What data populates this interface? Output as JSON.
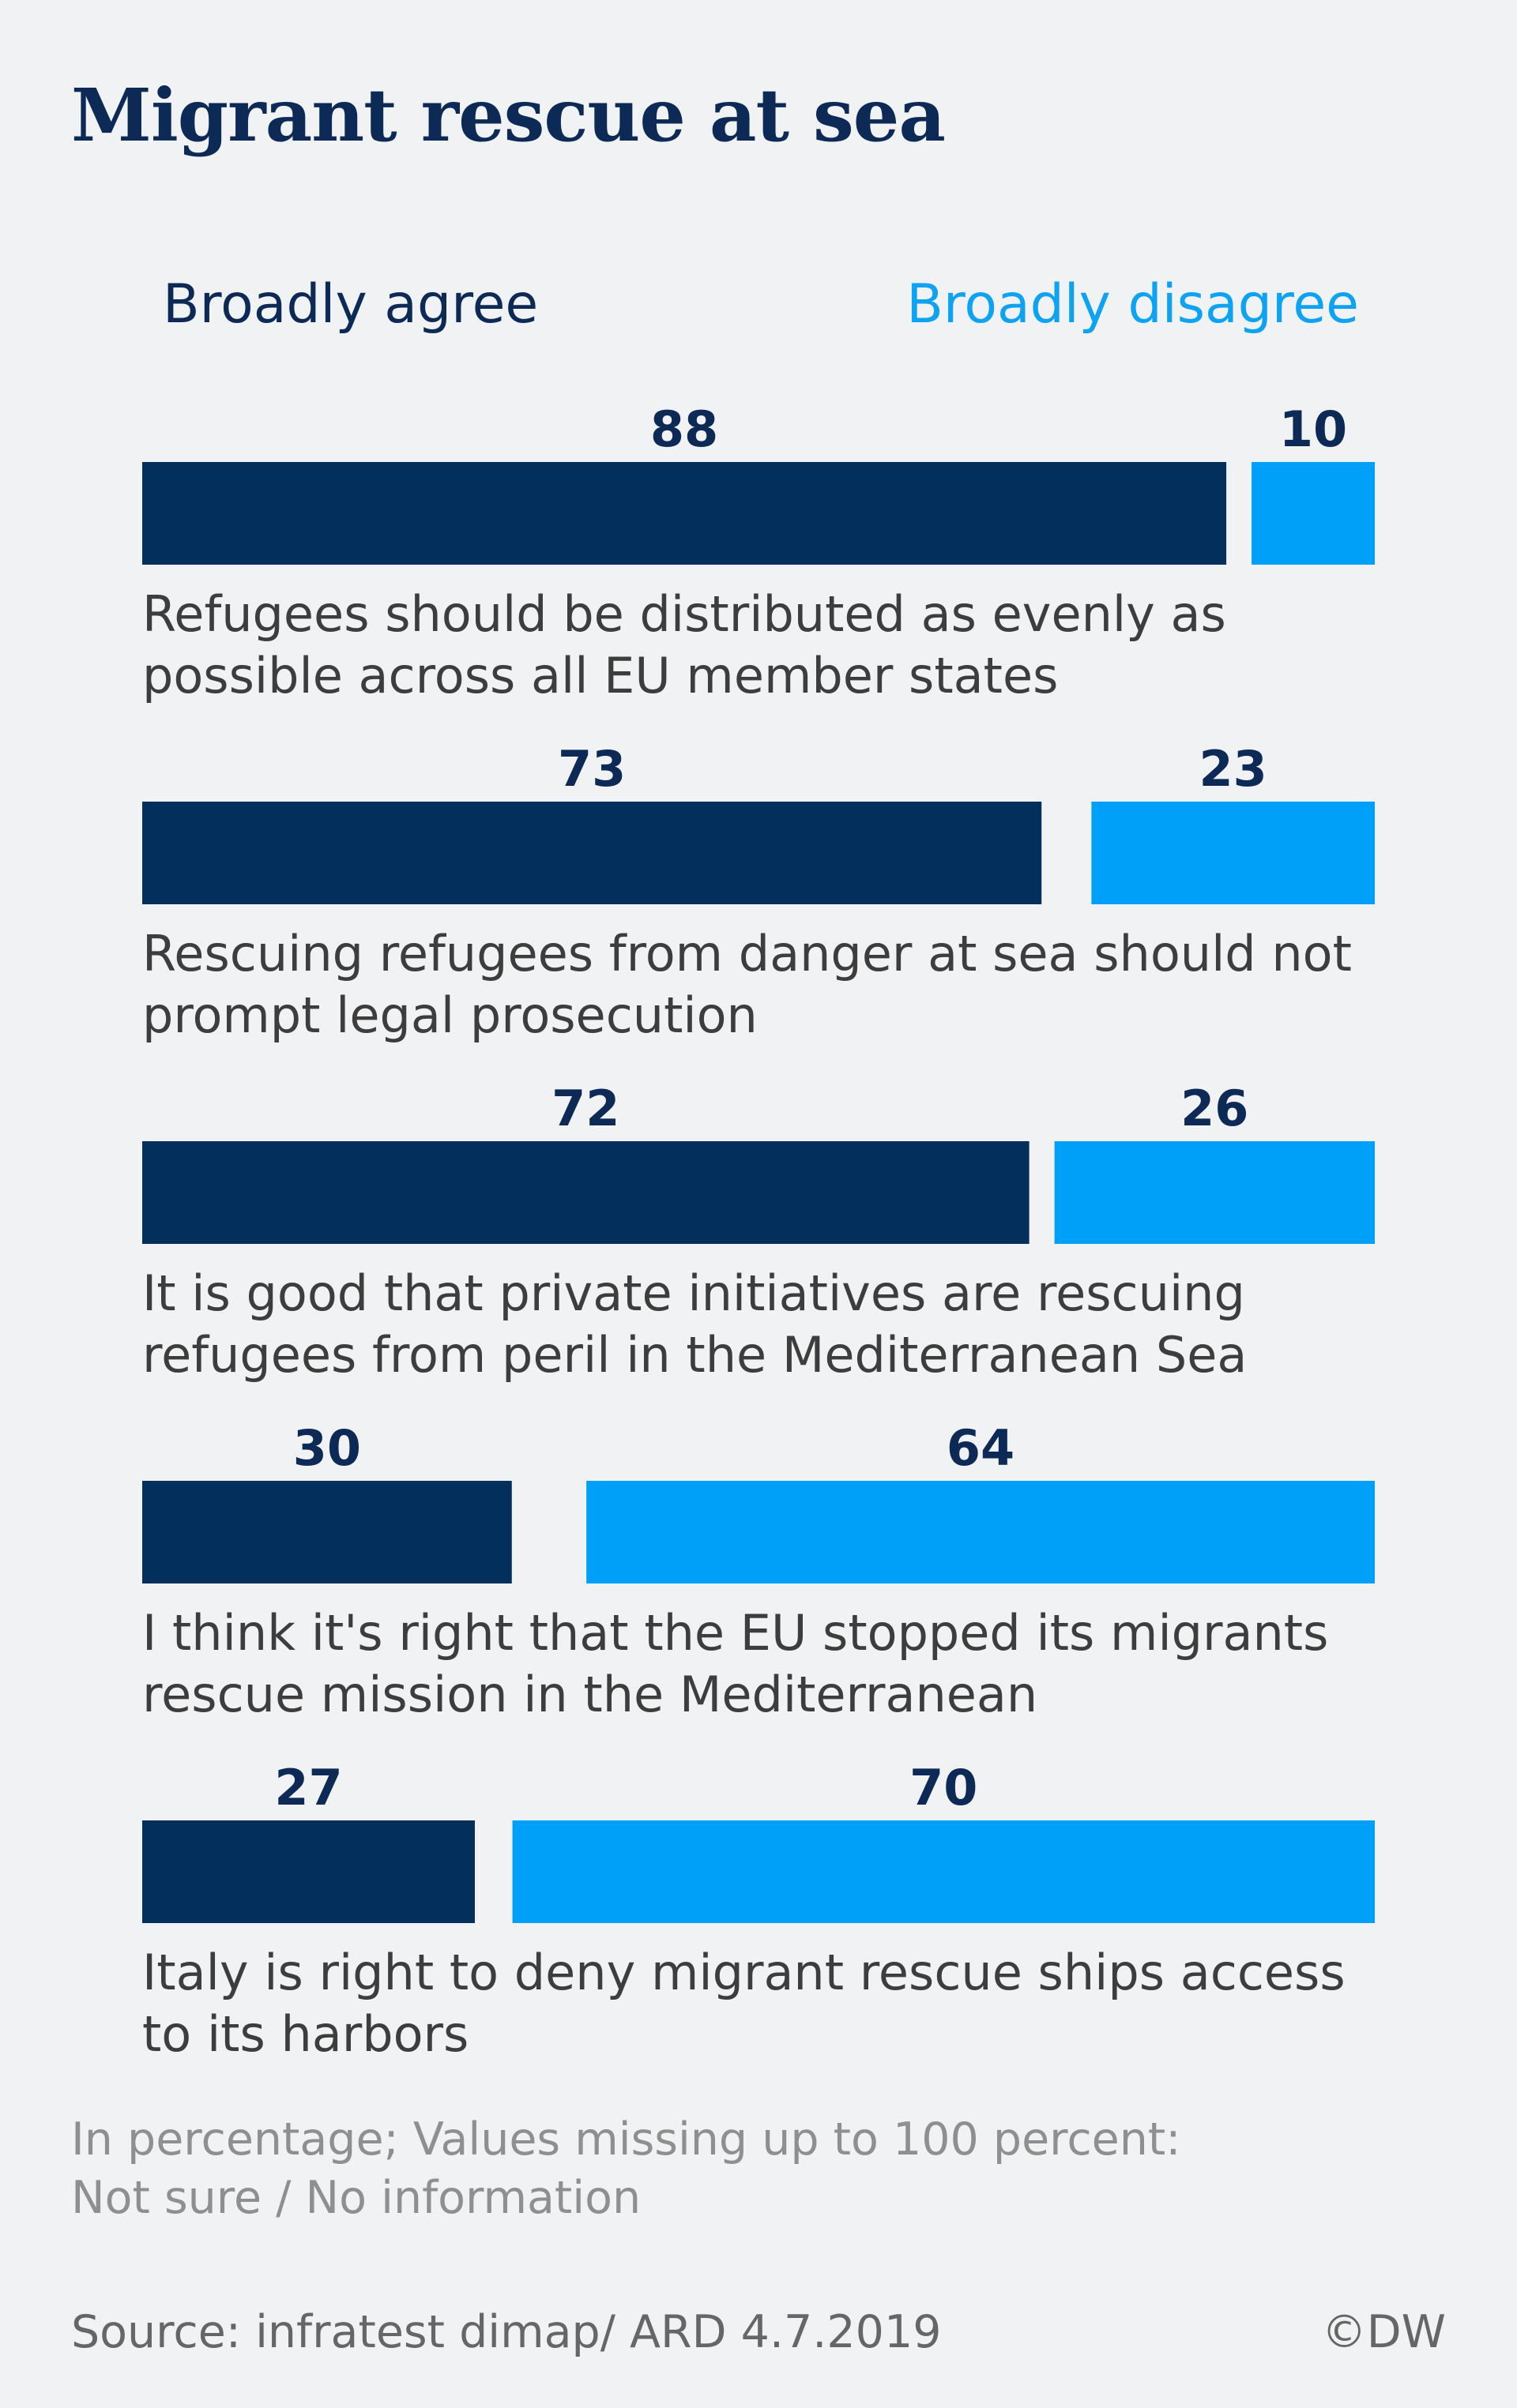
{
  "title": "Migrant rescue at sea",
  "legend": {
    "agree": "Broadly agree",
    "disagree": "Broadly disagree"
  },
  "colors": {
    "agree": "#022f5c",
    "disagree": "#00a0f8",
    "value_text": "#0c2a55",
    "category_text": "#3d3d3d"
  },
  "chart_data": {
    "type": "bar",
    "orientation": "horizontal-diverging",
    "series": [
      {
        "name": "Broadly agree",
        "values": [
          88,
          73,
          72,
          30,
          27
        ]
      },
      {
        "name": "Broadly disagree",
        "values": [
          10,
          23,
          26,
          64,
          70
        ]
      }
    ],
    "categories": [
      [
        "Refugees should be distributed as evenly as",
        "possible across all EU member states"
      ],
      [
        "Rescuing refugees from danger at sea should not",
        "prompt legal prosecution"
      ],
      [
        "It is good that private initiatives are rescuing",
        "refugees from peril in the Mediterranean Sea"
      ],
      [
        "I think it's right that the EU stopped its migrants",
        "rescue mission in the Mediterranean"
      ],
      [
        "Italy is right to deny migrant rescue ships access",
        "to its harbors"
      ]
    ],
    "unit": "percent",
    "legend_position": "top"
  },
  "note": [
    "In percentage; Values missing up to 100 percent:",
    "Not sure / No information"
  ],
  "source": "Source: infratest dimap/ ARD 4.7.2019",
  "credit": "©DW"
}
